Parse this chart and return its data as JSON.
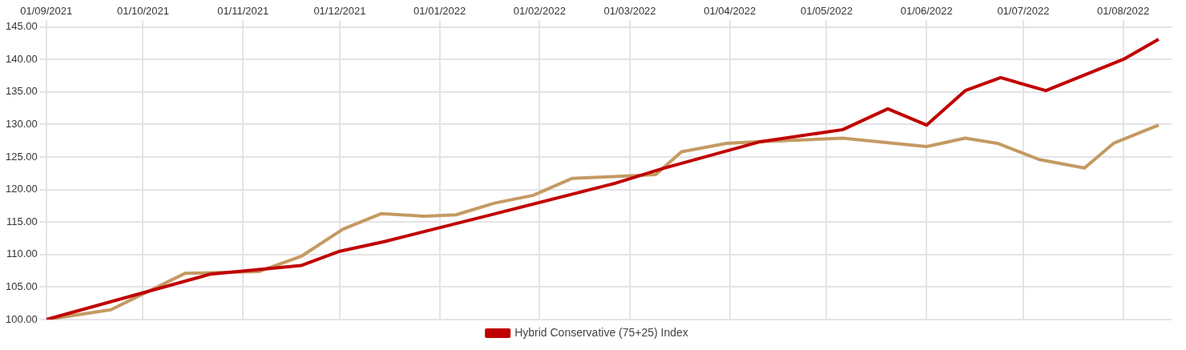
{
  "chart_data": {
    "type": "line",
    "marker": "none",
    "line_style": "solid",
    "grid": true,
    "legend": "bottom",
    "xlim": [
      "2021-09-01",
      "2022-08-16"
    ],
    "xticks": [
      {
        "value": "2021-09-01",
        "label": "01/09/2021"
      },
      {
        "value": "2021-10-01",
        "label": "01/10/2021"
      },
      {
        "value": "2021-11-01",
        "label": "01/11/2021"
      },
      {
        "value": "2021-12-01",
        "label": "01/12/2021"
      },
      {
        "value": "2022-01-01",
        "label": "01/01/2022"
      },
      {
        "value": "2022-02-01",
        "label": "01/02/2022"
      },
      {
        "value": "2022-03-01",
        "label": "01/03/2022"
      },
      {
        "value": "2022-04-01",
        "label": "01/04/2022"
      },
      {
        "value": "2022-05-01",
        "label": "01/05/2022"
      },
      {
        "value": "2022-06-01",
        "label": "01/06/2022"
      },
      {
        "value": "2022-07-01",
        "label": "01/07/2022"
      },
      {
        "value": "2022-08-01",
        "label": "01/08/2022"
      }
    ],
    "ylim": [
      100,
      145
    ],
    "yticks": [
      {
        "value": 100,
        "label": "100.00"
      },
      {
        "value": 105,
        "label": "105.00"
      },
      {
        "value": 110,
        "label": "110.00"
      },
      {
        "value": 115,
        "label": "115.00"
      },
      {
        "value": 120,
        "label": "120.00"
      },
      {
        "value": 125,
        "label": "125.00"
      },
      {
        "value": 130,
        "label": "130.00"
      },
      {
        "value": 135,
        "label": "135.00"
      },
      {
        "value": 140,
        "label": "140.00"
      },
      {
        "value": 145,
        "label": "145.00"
      }
    ],
    "series": [
      {
        "name": "Hybrid Conservative (75+25) Index",
        "color": "#c00000",
        "x": [
          "2021-09-01",
          "2021-10-22",
          "2021-11-19",
          "2021-12-01",
          "2021-12-15",
          "2022-01-16",
          "2022-02-24",
          "2022-03-11",
          "2022-04-10",
          "2022-05-06",
          "2022-05-20",
          "2022-06-01",
          "2022-06-13",
          "2022-06-24",
          "2022-07-08",
          "2022-08-01",
          "2022-08-12"
        ],
        "values": [
          100,
          107.0,
          108.3,
          110.5,
          112.0,
          116.0,
          120.9,
          123.2,
          127.3,
          129.2,
          132.4,
          129.9,
          135.2,
          137.2,
          135.2,
          140.0,
          143.1
        ]
      },
      {
        "color": "#c49a62",
        "x": [
          "2021-09-01",
          "2021-09-21",
          "2021-10-14",
          "2021-11-06",
          "2021-11-19",
          "2021-12-02",
          "2021-12-14",
          "2021-12-27",
          "2022-01-06",
          "2022-01-18",
          "2022-01-30",
          "2022-02-11",
          "2022-02-25",
          "2022-03-09",
          "2022-03-17",
          "2022-03-31",
          "2022-04-08",
          "2022-05-06",
          "2022-06-01",
          "2022-06-13",
          "2022-06-23",
          "2022-07-06",
          "2022-07-20",
          "2022-07-29",
          "2022-08-12"
        ],
        "values": [
          100,
          101.5,
          107.1,
          107.4,
          109.7,
          113.9,
          116.3,
          115.9,
          116.1,
          117.9,
          119.1,
          121.7,
          122.0,
          122.3,
          125.8,
          127.1,
          127.3,
          127.9,
          126.6,
          127.9,
          127.1,
          124.6,
          123.3,
          127.1,
          129.9
        ]
      }
    ]
  }
}
